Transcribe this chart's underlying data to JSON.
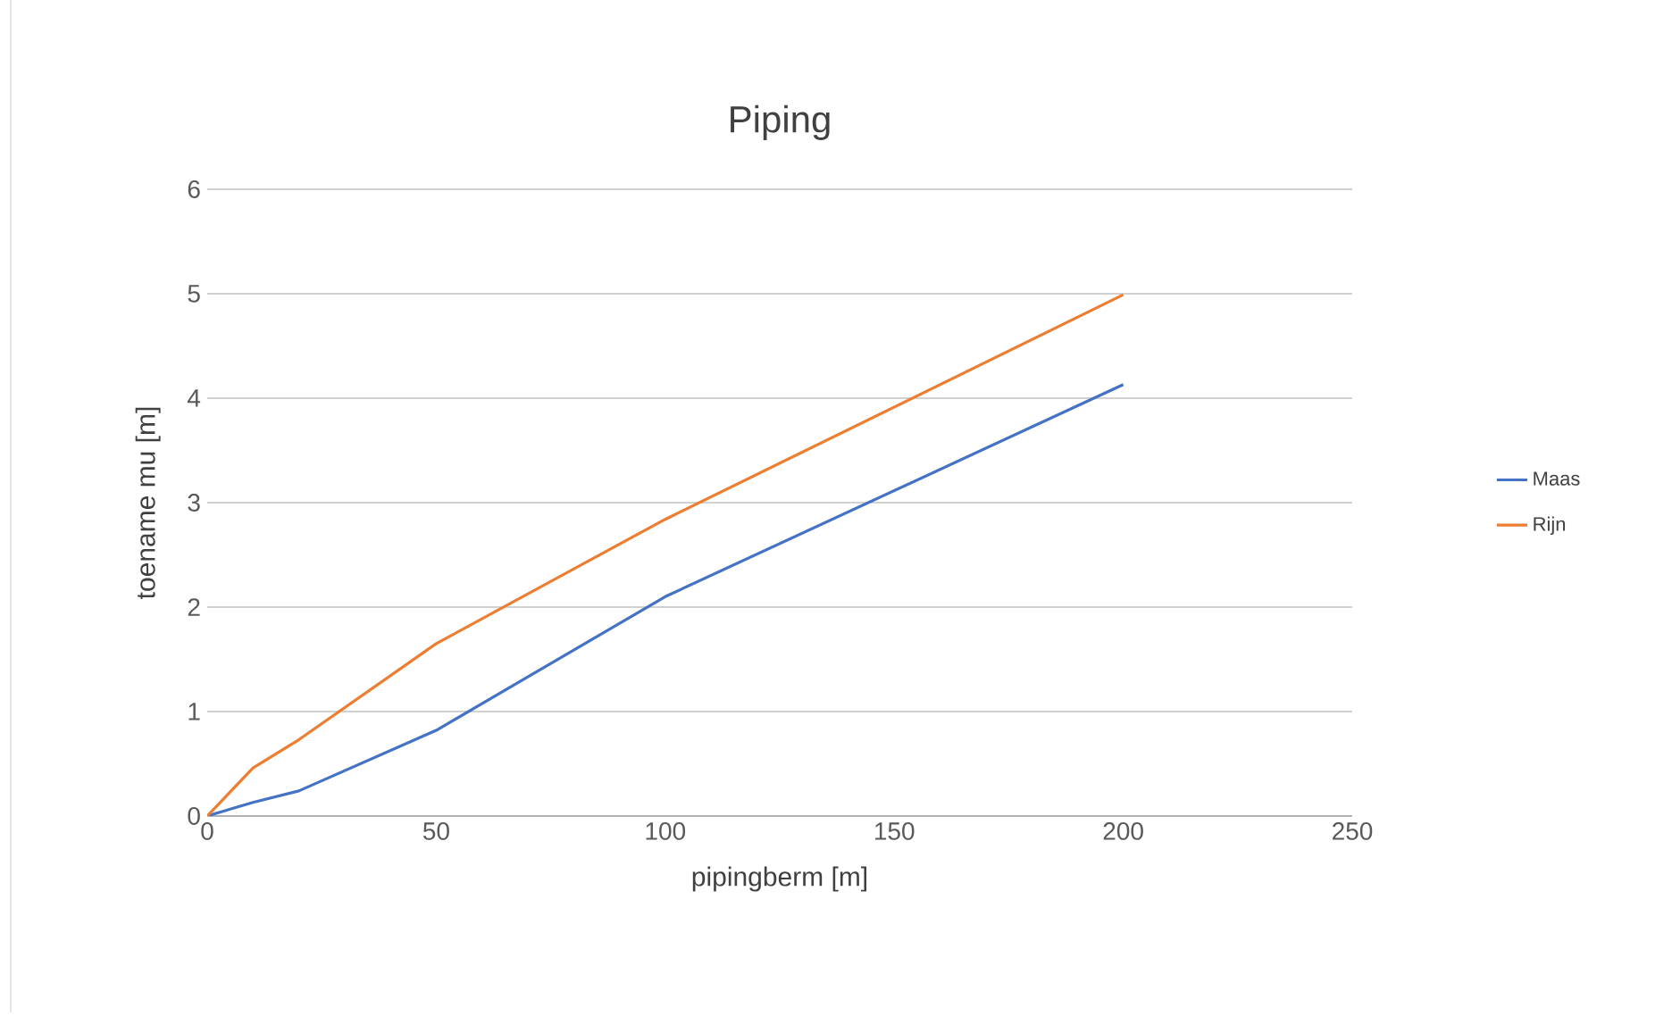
{
  "chart_data": {
    "type": "line",
    "title": "Piping",
    "xlabel": "pipingberm [m]",
    "ylabel": "toename mu [m]",
    "x": [
      0,
      10,
      20,
      50,
      100,
      200
    ],
    "series": [
      {
        "name": "Maas",
        "color": "#4472c4",
        "values": [
          0,
          0.13,
          0.24,
          0.82,
          2.1,
          4.13
        ]
      },
      {
        "name": "Rijn",
        "color": "#ed7d31",
        "values": [
          0,
          0.46,
          0.73,
          1.65,
          2.84,
          4.99
        ]
      }
    ],
    "xlim": [
      0,
      250
    ],
    "xticks": [
      0,
      50,
      100,
      150,
      200,
      250
    ],
    "ylim": [
      0,
      6
    ],
    "yticks": [
      0,
      1,
      2,
      3,
      4,
      5,
      6
    ],
    "grid": "y",
    "legend": "right",
    "marker": "none",
    "line_style": "solid"
  }
}
